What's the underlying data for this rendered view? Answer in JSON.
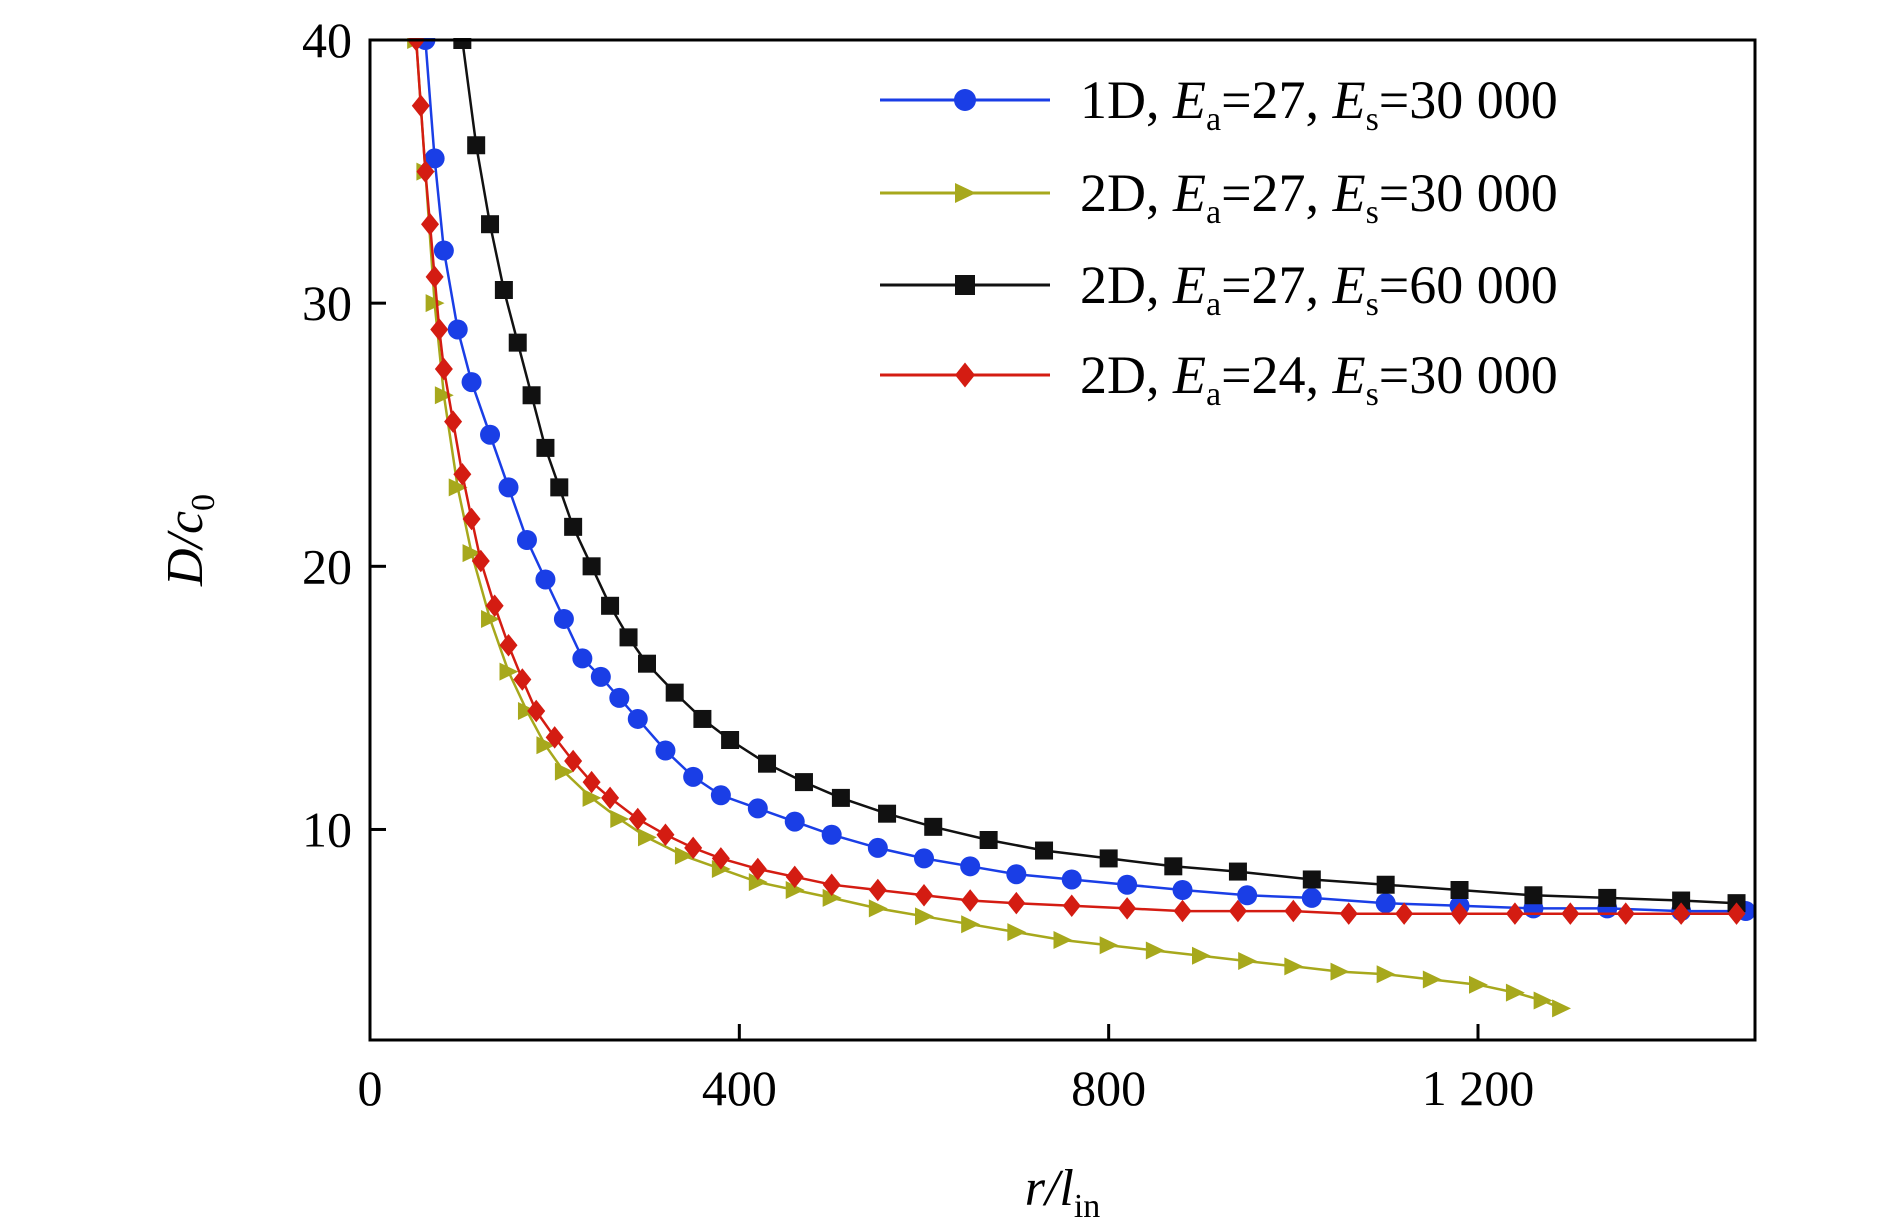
{
  "chart_data": {
    "type": "line",
    "title": "",
    "xlabel": {
      "main": "r/l",
      "sub": "in"
    },
    "ylabel": {
      "main": "D/c",
      "sub": "0"
    },
    "xlim": [
      0,
      1500
    ],
    "ylim": [
      2,
      40
    ],
    "xticks": [
      0,
      400,
      800,
      1200
    ],
    "xtick_labels": [
      "0",
      "400",
      "800",
      "1 200"
    ],
    "yticks": [
      10,
      20,
      30,
      40
    ],
    "ytick_labels": [
      "10",
      "20",
      "30",
      "40"
    ],
    "grid": false,
    "legend_position": "top-right",
    "series": [
      {
        "name": "1D, Ea=27, Es=30 000",
        "label_parts": [
          "1D, ",
          "E",
          "a",
          "=27, ",
          "E",
          "s",
          "=30 000"
        ],
        "color": "#1a3ee6",
        "marker": "circle",
        "x": [
          60,
          70,
          80,
          95,
          110,
          130,
          150,
          170,
          190,
          210,
          230,
          250,
          270,
          290,
          320,
          350,
          380,
          420,
          460,
          500,
          550,
          600,
          650,
          700,
          760,
          820,
          880,
          950,
          1020,
          1100,
          1180,
          1260,
          1340,
          1420,
          1490
        ],
        "y": [
          40,
          35.5,
          32,
          29,
          27,
          25,
          23,
          21,
          19.5,
          18,
          16.5,
          15.8,
          15.0,
          14.2,
          13.0,
          12.0,
          11.3,
          10.8,
          10.3,
          9.8,
          9.3,
          8.9,
          8.6,
          8.3,
          8.1,
          7.9,
          7.7,
          7.5,
          7.4,
          7.2,
          7.1,
          7.0,
          7.0,
          6.9,
          6.9
        ]
      },
      {
        "name": "2D, Ea=27, Es=30 000",
        "label_parts": [
          "2D, ",
          "E",
          "a",
          "=27, ",
          "E",
          "s",
          "=30 000"
        ],
        "color": "#a7a81c",
        "marker": "triangle-right",
        "x": [
          50,
          60,
          70,
          80,
          95,
          110,
          130,
          150,
          170,
          190,
          210,
          240,
          270,
          300,
          340,
          380,
          420,
          460,
          500,
          550,
          600,
          650,
          700,
          750,
          800,
          850,
          900,
          950,
          1000,
          1050,
          1100,
          1150,
          1200,
          1240,
          1270,
          1290
        ],
        "y": [
          40,
          35,
          30,
          26.5,
          23,
          20.5,
          18,
          16,
          14.5,
          13.2,
          12.2,
          11.2,
          10.4,
          9.7,
          9.0,
          8.5,
          8.0,
          7.7,
          7.4,
          7.0,
          6.7,
          6.4,
          6.1,
          5.8,
          5.6,
          5.4,
          5.2,
          5.0,
          4.8,
          4.6,
          4.5,
          4.3,
          4.1,
          3.8,
          3.5,
          3.2
        ]
      },
      {
        "name": "2D, Ea=27, Es=60 000",
        "label_parts": [
          "2D, ",
          "E",
          "a",
          "=27, ",
          "E",
          "s",
          "=60 000"
        ],
        "color": "#111111",
        "marker": "square",
        "x": [
          100,
          115,
          130,
          145,
          160,
          175,
          190,
          205,
          220,
          240,
          260,
          280,
          300,
          330,
          360,
          390,
          430,
          470,
          510,
          560,
          610,
          670,
          730,
          800,
          870,
          940,
          1020,
          1100,
          1180,
          1260,
          1340,
          1420,
          1480
        ],
        "y": [
          40,
          36,
          33,
          30.5,
          28.5,
          26.5,
          24.5,
          23,
          21.5,
          20,
          18.5,
          17.3,
          16.3,
          15.2,
          14.2,
          13.4,
          12.5,
          11.8,
          11.2,
          10.6,
          10.1,
          9.6,
          9.2,
          8.9,
          8.6,
          8.4,
          8.1,
          7.9,
          7.7,
          7.5,
          7.4,
          7.3,
          7.2
        ]
      },
      {
        "name": "2D, Ea=24, Es=30 000",
        "label_parts": [
          "2D, ",
          "E",
          "a",
          "=24, ",
          "E",
          "s",
          "=30 000"
        ],
        "color": "#d41c12",
        "marker": "diamond",
        "x": [
          50,
          55,
          60,
          65,
          70,
          75,
          80,
          90,
          100,
          110,
          120,
          135,
          150,
          165,
          180,
          200,
          220,
          240,
          260,
          290,
          320,
          350,
          380,
          420,
          460,
          500,
          550,
          600,
          650,
          700,
          760,
          820,
          880,
          940,
          1000,
          1060,
          1120,
          1180,
          1240,
          1300,
          1360,
          1420,
          1480
        ],
        "y": [
          40,
          37.5,
          35,
          33,
          31,
          29,
          27.5,
          25.5,
          23.5,
          21.8,
          20.2,
          18.5,
          17.0,
          15.7,
          14.5,
          13.5,
          12.6,
          11.8,
          11.2,
          10.4,
          9.8,
          9.3,
          8.9,
          8.5,
          8.2,
          7.9,
          7.7,
          7.5,
          7.3,
          7.2,
          7.1,
          7.0,
          6.9,
          6.9,
          6.9,
          6.8,
          6.8,
          6.8,
          6.8,
          6.8,
          6.8,
          6.8,
          6.8
        ]
      }
    ]
  }
}
